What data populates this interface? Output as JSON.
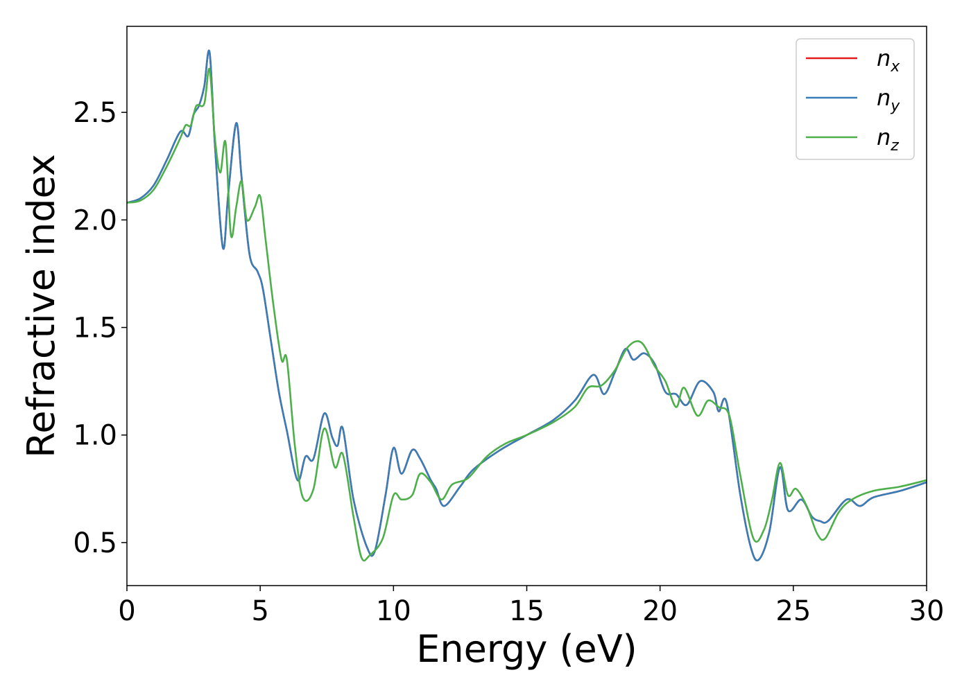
{
  "chart_data": {
    "type": "line",
    "xlabel": "Energy (eV)",
    "ylabel": "Refractive index",
    "xlim": [
      0,
      30
    ],
    "ylim": [
      0.3,
      2.9
    ],
    "xticks": [
      0,
      5,
      10,
      15,
      20,
      25,
      30
    ],
    "xtick_labels": [
      "0",
      "5",
      "10",
      "15",
      "20",
      "25",
      "30"
    ],
    "yticks": [
      0.5,
      1.0,
      1.5,
      2.0,
      2.5
    ],
    "ytick_labels": [
      "0.5",
      "1.0",
      "1.5",
      "2.0",
      "2.5"
    ],
    "grid": false,
    "legend_position": "top-right",
    "series": [
      {
        "name": "n",
        "subscript": "x",
        "color": "#e41a1c",
        "x": [
          0,
          0.5,
          1.0,
          1.5,
          2.0,
          2.3,
          2.5,
          2.7,
          2.9,
          3.1,
          3.3,
          3.6,
          3.8,
          4.1,
          4.3,
          4.6,
          4.9,
          5.1,
          5.4,
          5.7,
          6.0,
          6.4,
          6.7,
          7.0,
          7.4,
          7.7,
          7.9,
          8.1,
          8.5,
          9.0,
          9.3,
          9.7,
          10.0,
          10.3,
          10.7,
          11.0,
          11.4,
          11.6,
          11.9,
          12.5,
          13.0,
          14.0,
          15.0,
          16.0,
          16.8,
          17.5,
          17.9,
          18.3,
          18.7,
          19.0,
          19.4,
          19.8,
          20.2,
          20.6,
          21.0,
          21.5,
          22.0,
          22.2,
          22.5,
          23.0,
          23.4,
          23.7,
          24.1,
          24.5,
          24.8,
          25.3,
          25.7,
          26.0,
          26.3,
          27.0,
          27.5,
          28.0,
          29.0,
          30.0
        ],
        "y": [
          2.08,
          2.1,
          2.16,
          2.28,
          2.41,
          2.39,
          2.49,
          2.53,
          2.62,
          2.78,
          2.35,
          1.87,
          2.12,
          2.45,
          2.2,
          1.84,
          1.76,
          1.68,
          1.44,
          1.2,
          1.02,
          0.79,
          0.9,
          0.89,
          1.1,
          0.99,
          0.95,
          1.03,
          0.7,
          0.48,
          0.46,
          0.72,
          0.94,
          0.82,
          0.93,
          0.89,
          0.79,
          0.75,
          0.67,
          0.76,
          0.84,
          0.93,
          1.0,
          1.07,
          1.16,
          1.28,
          1.19,
          1.29,
          1.4,
          1.35,
          1.38,
          1.33,
          1.2,
          1.19,
          1.14,
          1.25,
          1.2,
          1.11,
          1.15,
          0.73,
          0.48,
          0.42,
          0.55,
          0.85,
          0.65,
          0.7,
          0.62,
          0.6,
          0.6,
          0.7,
          0.67,
          0.71,
          0.74,
          0.78
        ]
      },
      {
        "name": "n",
        "subscript": "y",
        "color": "#377eb8",
        "x": [
          0,
          0.5,
          1.0,
          1.5,
          2.0,
          2.3,
          2.5,
          2.7,
          2.9,
          3.1,
          3.3,
          3.6,
          3.8,
          4.1,
          4.3,
          4.6,
          4.9,
          5.1,
          5.4,
          5.7,
          6.0,
          6.4,
          6.7,
          7.0,
          7.4,
          7.7,
          7.9,
          8.1,
          8.5,
          9.0,
          9.3,
          9.7,
          10.0,
          10.3,
          10.7,
          11.0,
          11.4,
          11.6,
          11.9,
          12.5,
          13.0,
          14.0,
          15.0,
          16.0,
          16.8,
          17.5,
          17.9,
          18.3,
          18.7,
          19.0,
          19.4,
          19.8,
          20.2,
          20.6,
          21.0,
          21.5,
          22.0,
          22.2,
          22.5,
          23.0,
          23.4,
          23.7,
          24.1,
          24.5,
          24.8,
          25.3,
          25.7,
          26.0,
          26.3,
          27.0,
          27.5,
          28.0,
          29.0,
          30.0
        ],
        "y": [
          2.08,
          2.1,
          2.16,
          2.28,
          2.41,
          2.39,
          2.49,
          2.53,
          2.62,
          2.78,
          2.35,
          1.87,
          2.12,
          2.45,
          2.2,
          1.84,
          1.76,
          1.68,
          1.44,
          1.2,
          1.02,
          0.79,
          0.9,
          0.89,
          1.1,
          0.99,
          0.95,
          1.03,
          0.7,
          0.48,
          0.46,
          0.72,
          0.94,
          0.82,
          0.93,
          0.89,
          0.79,
          0.75,
          0.67,
          0.76,
          0.84,
          0.93,
          1.0,
          1.07,
          1.16,
          1.28,
          1.19,
          1.29,
          1.4,
          1.35,
          1.38,
          1.33,
          1.2,
          1.19,
          1.14,
          1.25,
          1.2,
          1.11,
          1.15,
          0.73,
          0.48,
          0.42,
          0.55,
          0.85,
          0.65,
          0.7,
          0.62,
          0.6,
          0.6,
          0.7,
          0.67,
          0.71,
          0.74,
          0.78
        ]
      },
      {
        "name": "n",
        "subscript": "z",
        "color": "#4daf4a",
        "x": [
          0,
          0.5,
          1.0,
          1.5,
          2.0,
          2.2,
          2.4,
          2.6,
          2.9,
          3.1,
          3.3,
          3.5,
          3.7,
          3.9,
          4.1,
          4.3,
          4.5,
          4.8,
          5.0,
          5.2,
          5.5,
          5.8,
          6.0,
          6.3,
          6.6,
          7.0,
          7.4,
          7.8,
          8.1,
          8.5,
          8.8,
          9.1,
          9.6,
          10.0,
          10.3,
          10.7,
          11.0,
          11.4,
          11.8,
          12.2,
          12.8,
          13.5,
          14.2,
          15.0,
          16.0,
          16.8,
          17.3,
          17.8,
          18.3,
          18.8,
          19.3,
          19.8,
          20.2,
          20.6,
          20.9,
          21.4,
          21.8,
          22.2,
          22.6,
          23.0,
          23.5,
          23.9,
          24.2,
          24.5,
          24.8,
          25.1,
          25.5,
          25.9,
          26.2,
          26.7,
          27.2,
          28.0,
          29.0,
          30.0
        ],
        "y": [
          2.08,
          2.09,
          2.14,
          2.25,
          2.38,
          2.44,
          2.44,
          2.53,
          2.54,
          2.7,
          2.38,
          2.22,
          2.36,
          1.93,
          2.06,
          2.18,
          2.0,
          2.06,
          2.11,
          1.91,
          1.6,
          1.35,
          1.35,
          0.95,
          0.71,
          0.75,
          1.03,
          0.85,
          0.91,
          0.62,
          0.43,
          0.44,
          0.52,
          0.72,
          0.7,
          0.72,
          0.82,
          0.78,
          0.7,
          0.77,
          0.8,
          0.9,
          0.96,
          1.0,
          1.06,
          1.13,
          1.22,
          1.23,
          1.3,
          1.41,
          1.43,
          1.32,
          1.25,
          1.13,
          1.22,
          1.09,
          1.16,
          1.13,
          1.09,
          0.82,
          0.52,
          0.56,
          0.7,
          0.87,
          0.72,
          0.75,
          0.67,
          0.54,
          0.52,
          0.64,
          0.7,
          0.74,
          0.76,
          0.79
        ]
      }
    ]
  }
}
